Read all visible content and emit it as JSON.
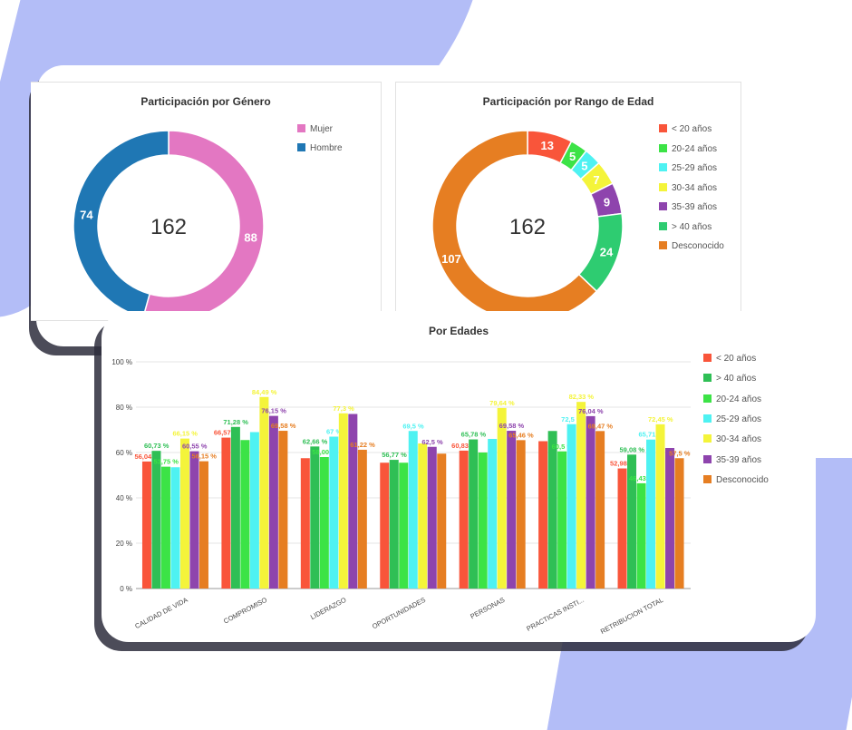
{
  "colors": {
    "background_shape": "#b3bdf7"
  },
  "gender_panel": {
    "title": "Participación por Género",
    "total": "162",
    "segments": [
      {
        "label": "Mujer",
        "value": 88,
        "color": "#e377c2"
      },
      {
        "label": "Hombre",
        "value": 74,
        "color": "#1f77b4"
      }
    ]
  },
  "age_panel": {
    "title": "Participación por Rango de Edad",
    "total": "162",
    "segments": [
      {
        "label": "< 20 años",
        "value": 13,
        "color": "#f9553a"
      },
      {
        "label": "20-24 años",
        "value": 5,
        "color": "#3ce346"
      },
      {
        "label": "25-29 años",
        "value": 5,
        "color": "#4ef2f2"
      },
      {
        "label": "30-34 años",
        "value": 7,
        "color": "#f4f43a"
      },
      {
        "label": "35-39 años",
        "value": 9,
        "color": "#8e44ad"
      },
      {
        "label": "> 40 años",
        "value": 24,
        "color": "#2ecc71"
      },
      {
        "label": "Desconocido",
        "value": 107,
        "color": "#e67e22"
      }
    ]
  },
  "bar_panel": {
    "title": "Por Edades"
  },
  "chart_data": [
    {
      "type": "pie",
      "title": "Participación por Género",
      "categories": [
        "Mujer",
        "Hombre"
      ],
      "values": [
        88,
        74
      ],
      "center_label": "162",
      "legend": "top-right"
    },
    {
      "type": "pie",
      "title": "Participación por Rango de Edad",
      "categories": [
        "< 20 años",
        "20-24 años",
        "25-29 años",
        "30-34 años",
        "35-39 años",
        "> 40 años",
        "Desconocido"
      ],
      "values": [
        13,
        5,
        5,
        7,
        9,
        24,
        107
      ],
      "center_label": "162",
      "legend": "right"
    },
    {
      "type": "bar",
      "title": "Por Edades",
      "categories": [
        "CALIDAD DE VIDA",
        "COMPROMISO",
        "LIDERAZGO",
        "OPORTUNIDADES",
        "PERSONAS",
        "PRACTICAS INSTI...",
        "RETRIBUCION TOTAL"
      ],
      "yticks": [
        "0 %",
        "20 %",
        "40 %",
        "60 %",
        "80 %",
        "100 %"
      ],
      "ylim": [
        0,
        100
      ],
      "grid": true,
      "legend": "right",
      "series": [
        {
          "name": "< 20 años",
          "color": "#f9553a",
          "values": [
            56.04,
            66.57,
            57.5,
            55.5,
            60.83,
            65.0,
            52.98
          ],
          "labels": [
            "56,04 %",
            "66,57 %",
            "",
            "",
            "60,83 %",
            "",
            "52,98 %"
          ]
        },
        {
          "name": "> 40 años",
          "color": "#2fbf55",
          "values": [
            60.73,
            71.28,
            62.66,
            56.77,
            65.78,
            69.5,
            59.08
          ],
          "labels": [
            "60,73 %",
            "71,28 %",
            "62,66 %",
            "56,77 %",
            "65,78 %",
            "",
            "59,08 %"
          ]
        },
        {
          "name": "20-24 años",
          "color": "#3ce346",
          "values": [
            53.75,
            65.5,
            58.0,
            55.5,
            60.0,
            60.5,
            46.43
          ],
          "labels": [
            "53,75 %",
            "",
            "58,00 %",
            "",
            "",
            "60,5 %",
            "46,43 %"
          ]
        },
        {
          "name": "25-29 años",
          "color": "#4ef2f2",
          "values": [
            53.5,
            69.0,
            67.0,
            69.5,
            66.0,
            72.5,
            65.71
          ],
          "labels": [
            "",
            "",
            "67 %",
            "69,5 %",
            "",
            "72,5 %",
            "65,71 %"
          ]
        },
        {
          "name": "30-34 años",
          "color": "#f4f43a",
          "values": [
            66.15,
            84.49,
            77.3,
            64.0,
            79.64,
            82.33,
            72.45
          ],
          "labels": [
            "66,15 %",
            "84,49 %",
            "77,3 %",
            "",
            "79,64 %",
            "82,33 %",
            "72,45 %"
          ]
        },
        {
          "name": "35-39 años",
          "color": "#8e44ad",
          "values": [
            60.55,
            76.15,
            77.0,
            62.5,
            69.58,
            76.04,
            62.0
          ],
          "labels": [
            "60,55 %",
            "76,15 %",
            "",
            "62,5 %",
            "69,58 %",
            "76,04 %",
            ""
          ]
        },
        {
          "name": "Desconocido",
          "color": "#e67e22",
          "values": [
            56.15,
            69.58,
            61.22,
            59.5,
            65.46,
            69.47,
            57.5
          ],
          "labels": [
            "56,15 %",
            "69,58 %",
            "61,22 %",
            "",
            "65,46 %",
            "69,47 %",
            "57,5 %"
          ]
        }
      ]
    }
  ]
}
